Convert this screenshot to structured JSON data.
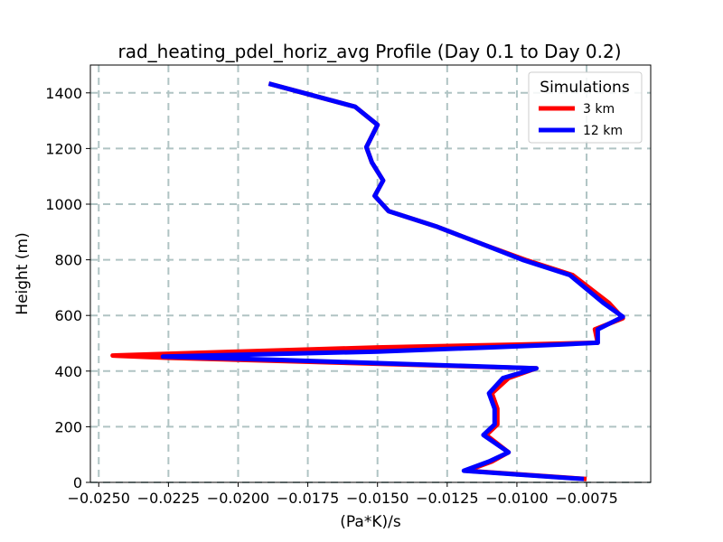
{
  "chart_data": {
    "type": "line",
    "title": "rad_heating_pdel_horiz_avg Profile (Day 0.1 to Day 0.2)",
    "xlabel": "(Pa*K)/s",
    "ylabel": "Height (m)",
    "xlim": [
      -0.0253,
      -0.0052
    ],
    "ylim": [
      0,
      1500
    ],
    "xticks": [
      -0.025,
      -0.0225,
      -0.02,
      -0.0175,
      -0.015,
      -0.0125,
      -0.01,
      -0.0075
    ],
    "xtick_labels": [
      "−0.0250",
      "−0.0225",
      "−0.0200",
      "−0.0175",
      "−0.0150",
      "−0.0125",
      "−0.0100",
      "−0.0075"
    ],
    "yticks": [
      0,
      200,
      400,
      600,
      800,
      1000,
      1200,
      1400
    ],
    "ytick_labels": [
      "0",
      "200",
      "400",
      "600",
      "800",
      "1000",
      "1200",
      "1400"
    ],
    "grid": true,
    "legend": {
      "title": "Simulations",
      "position": "top-right"
    },
    "series": [
      {
        "name": "3 km",
        "color": "#ff0000",
        "points": [
          [
            -0.0075,
            12
          ],
          [
            -0.0118,
            42
          ],
          [
            -0.0109,
            75
          ],
          [
            -0.0103,
            108
          ],
          [
            -0.0111,
            170
          ],
          [
            -0.0107,
            208
          ],
          [
            -0.0107,
            265
          ],
          [
            -0.0109,
            320
          ],
          [
            -0.0103,
            375
          ],
          [
            -0.0093,
            410
          ],
          [
            -0.0226,
            448
          ],
          [
            -0.0245,
            456
          ],
          [
            -0.02,
            470
          ],
          [
            -0.015,
            485
          ],
          [
            -0.01,
            495
          ],
          [
            -0.0071,
            502
          ],
          [
            -0.0072,
            550
          ],
          [
            -0.0062,
            590
          ],
          [
            -0.0067,
            645
          ],
          [
            -0.008,
            745
          ],
          [
            -0.0097,
            800
          ],
          [
            -0.0112,
            855
          ],
          [
            -0.0129,
            920
          ],
          [
            -0.0146,
            975
          ],
          [
            -0.0151,
            1030
          ],
          [
            -0.0148,
            1085
          ],
          [
            -0.0152,
            1150
          ],
          [
            -0.0154,
            1205
          ],
          [
            -0.015,
            1285
          ],
          [
            -0.0158,
            1350
          ],
          [
            -0.0189,
            1433
          ]
        ]
      },
      {
        "name": "12 km",
        "color": "#0000ff",
        "points": [
          [
            -0.0076,
            12
          ],
          [
            -0.0119,
            42
          ],
          [
            -0.011,
            75
          ],
          [
            -0.0103,
            108
          ],
          [
            -0.0112,
            170
          ],
          [
            -0.0108,
            208
          ],
          [
            -0.0108,
            265
          ],
          [
            -0.011,
            320
          ],
          [
            -0.0105,
            375
          ],
          [
            -0.0093,
            410
          ],
          [
            -0.0185,
            440
          ],
          [
            -0.0227,
            452
          ],
          [
            -0.015,
            470
          ],
          [
            -0.011,
            485
          ],
          [
            -0.0085,
            495
          ],
          [
            -0.0071,
            502
          ],
          [
            -0.0071,
            550
          ],
          [
            -0.0062,
            595
          ],
          [
            -0.0069,
            645
          ],
          [
            -0.0081,
            745
          ],
          [
            -0.0098,
            800
          ],
          [
            -0.0112,
            855
          ],
          [
            -0.0129,
            920
          ],
          [
            -0.0146,
            975
          ],
          [
            -0.0151,
            1030
          ],
          [
            -0.0148,
            1085
          ],
          [
            -0.0152,
            1150
          ],
          [
            -0.0154,
            1205
          ],
          [
            -0.015,
            1285
          ],
          [
            -0.0158,
            1350
          ],
          [
            -0.0189,
            1433
          ]
        ]
      }
    ]
  }
}
